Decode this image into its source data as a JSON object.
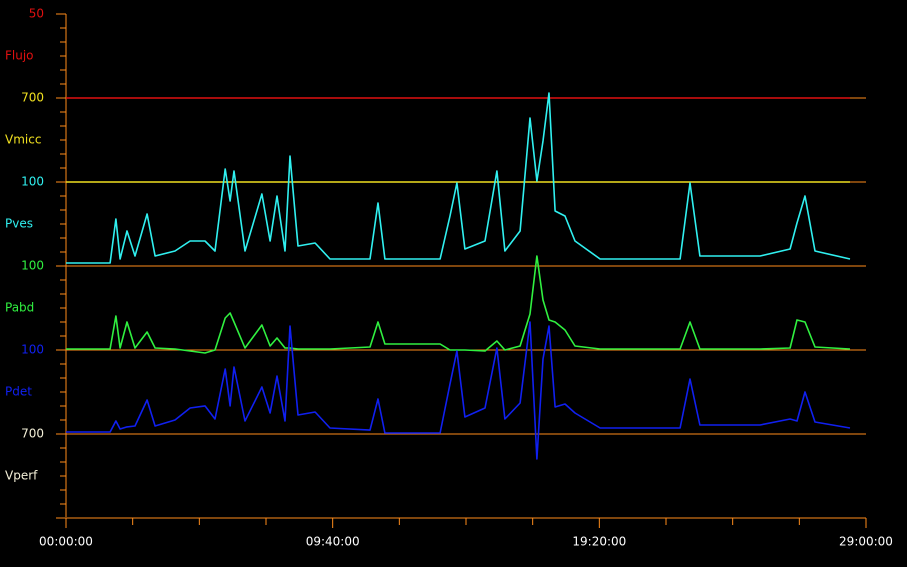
{
  "chart_data": {
    "type": "line",
    "xlim": [
      0,
      29
    ],
    "xticks": [
      {
        "value": 0,
        "label": "00:00:00"
      },
      {
        "value": 9.6667,
        "label": "09:40:00"
      },
      {
        "value": 19.3333,
        "label": "19:20:00"
      },
      {
        "value": 29,
        "label": "29:00:00"
      }
    ],
    "x": [
      0,
      1.6,
      1.81,
      1.96,
      2.21,
      2.5,
      2.94,
      3.23,
      3.95,
      4.5,
      5.04,
      5.4,
      5.77,
      5.95,
      6.09,
      6.49,
      7.1,
      7.4,
      7.65,
      7.94,
      8.12,
      8.41,
      9.03,
      9.57,
      11.02,
      11.31,
      11.56,
      13.56,
      13.92,
      14.17,
      14.46,
      15.19,
      15.62,
      15.91,
      16.46,
      16.82,
      17.07,
      17.29,
      17.51,
      17.73,
      18.09,
      18.45,
      19.36,
      22.26,
      22.62,
      22.98,
      25.16,
      26.25,
      26.5,
      26.79,
      27.15,
      28.42
    ],
    "channels": [
      {
        "name": "Flujo",
        "scale": 50,
        "color": "#e01010",
        "x": [
          0,
          28.42
        ],
        "values": [
          0,
          0
        ]
      },
      {
        "name": "Vmicc",
        "scale": 700,
        "color": "#f0e020",
        "x": [
          0,
          28.42
        ],
        "values": [
          0,
          0
        ]
      },
      {
        "name": "Pves",
        "scale": 100,
        "color": "#30f0f0",
        "values": [
          3.6,
          3.6,
          56,
          8.3,
          41.7,
          11.9,
          61.9,
          11.9,
          17.9,
          29.8,
          29.8,
          17.9,
          115.5,
          77.4,
          113.1,
          17.9,
          85.7,
          29.8,
          83.3,
          17.9,
          131,
          23.8,
          27.4,
          8.3,
          8.3,
          75,
          8.3,
          8.3,
          59.5,
          98.8,
          20.2,
          29.8,
          113.1,
          17.9,
          41.7,
          176.2,
          101.2,
          148.8,
          205.9,
          65.5,
          59.5,
          29.8,
          8.3,
          8.3,
          98.8,
          11.9,
          11.9,
          20.2,
          51.2,
          83.3,
          17.9,
          8.3
        ]
      },
      {
        "name": "Pabd",
        "scale": 100,
        "color": "#30f040",
        "values": [
          1.2,
          1.2,
          40.5,
          2.4,
          33.3,
          2.4,
          21.4,
          2.4,
          1.2,
          -1.2,
          -3.6,
          0,
          38.1,
          44,
          33.3,
          2.4,
          29.8,
          4.8,
          14.3,
          2.4,
          2.4,
          1.2,
          1.2,
          1.2,
          3.6,
          33.3,
          7.1,
          7.1,
          0,
          0,
          0,
          -1.2,
          10.7,
          0,
          4.8,
          42.9,
          111.9,
          59.5,
          35.7,
          33.3,
          23.8,
          4.8,
          1.2,
          1.2,
          33.3,
          1.2,
          1.2,
          2.4,
          35.7,
          33.3,
          3.6,
          1.2
        ]
      },
      {
        "name": "Pdet",
        "scale": 100,
        "color": "#1020f0",
        "values": [
          2.4,
          2.4,
          15.5,
          5.9,
          8.4,
          9.5,
          40.5,
          9.5,
          16.7,
          31,
          33.4,
          17.9,
          77.4,
          33.4,
          79.8,
          15.5,
          55.9,
          25,
          69,
          15.5,
          128.6,
          22.6,
          26.2,
          7.1,
          4.7,
          41.7,
          1.2,
          1.2,
          59.5,
          98.8,
          20.2,
          31,
          102.4,
          17.9,
          36.9,
          133.3,
          -29.8,
          89.3,
          128.6,
          32.2,
          35.7,
          25,
          7.1,
          7.1,
          65.5,
          10.7,
          10.7,
          17.8,
          15.5,
          50,
          14.3,
          7.1
        ]
      },
      {
        "name": "Vperf",
        "scale": 700,
        "color": "#f4f0d8"
      }
    ]
  }
}
